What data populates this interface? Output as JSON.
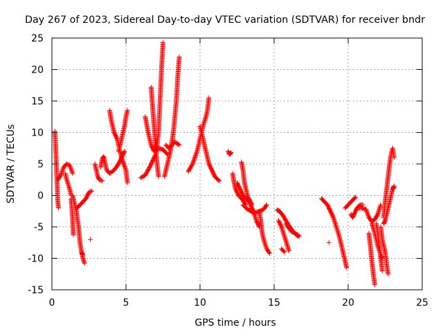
{
  "chart_data": {
    "type": "scatter",
    "title": "Day 267 of 2023, Sidereal Day-to-day VTEC variation (SDTVAR) for receiver bndr",
    "xlabel": "GPS time / hours",
    "ylabel": "SDTVAR / TECUs",
    "xlim": [
      0,
      25
    ],
    "ylim": [
      -15,
      25
    ],
    "xticks": [
      0,
      5,
      10,
      15,
      20,
      25
    ],
    "yticks": [
      -15,
      -10,
      -5,
      0,
      5,
      10,
      15,
      20,
      25
    ],
    "grid": true,
    "marker": "+",
    "series": [
      {
        "name": "SDTVAR",
        "color": "#ff0000",
        "segments": [
          [
            [
              0.2,
              10.2
            ],
            [
              0.25,
              8
            ],
            [
              0.3,
              5
            ],
            [
              0.35,
              2
            ],
            [
              0.4,
              -1
            ],
            [
              0.45,
              -2
            ]
          ],
          [
            [
              0.4,
              2.5
            ],
            [
              0.6,
              3.2
            ],
            [
              0.8,
              4.5
            ],
            [
              1.0,
              5
            ],
            [
              1.2,
              4.8
            ],
            [
              1.4,
              3.5
            ]
          ],
          [
            [
              0.9,
              3.5
            ],
            [
              1.0,
              2.5
            ],
            [
              1.2,
              1
            ],
            [
              1.3,
              0
            ]
          ],
          [
            [
              1.3,
              -0.5
            ],
            [
              1.35,
              -2
            ],
            [
              1.4,
              -4
            ],
            [
              1.45,
              -6.3
            ]
          ],
          [
            [
              1.4,
              0
            ],
            [
              1.5,
              -1
            ],
            [
              1.65,
              -2.5
            ],
            [
              1.8,
              -5
            ],
            [
              1.9,
              -7.5
            ],
            [
              2.0,
              -9
            ],
            [
              2.1,
              -9.5
            ]
          ],
          [
            [
              2.0,
              -9
            ],
            [
              2.1,
              -10
            ],
            [
              2.2,
              -10.8
            ]
          ],
          [
            [
              1.7,
              -2
            ],
            [
              1.9,
              -1.5
            ],
            [
              2.1,
              -1
            ],
            [
              2.3,
              -0.5
            ],
            [
              2.5,
              0.5
            ],
            [
              2.7,
              0.7
            ]
          ],
          [
            [
              2.6,
              -7
            ]
          ],
          [
            [
              2.9,
              5
            ],
            [
              3.0,
              4
            ],
            [
              3.1,
              3
            ],
            [
              3.2,
              2.5
            ],
            [
              3.4,
              2.3
            ]
          ],
          [
            [
              3.3,
              4.5
            ],
            [
              3.4,
              5.8
            ],
            [
              3.5,
              6.2
            ],
            [
              3.6,
              5
            ],
            [
              3.7,
              4
            ]
          ],
          [
            [
              3.7,
              4
            ],
            [
              3.9,
              3.5
            ],
            [
              4.2,
              4
            ],
            [
              4.5,
              5
            ],
            [
              4.8,
              6.5
            ],
            [
              4.9,
              7
            ]
          ],
          [
            [
              3.9,
              13.5
            ],
            [
              4.0,
              12
            ],
            [
              4.2,
              10
            ],
            [
              4.4,
              9
            ],
            [
              4.7,
              6
            ],
            [
              5.0,
              4
            ],
            [
              5.1,
              2
            ]
          ],
          [
            [
              4.5,
              7
            ],
            [
              4.7,
              9
            ],
            [
              4.9,
              11
            ],
            [
              5.0,
              12.5
            ],
            [
              5.1,
              13.5
            ]
          ],
          [
            [
              6.0,
              2.8
            ],
            [
              6.3,
              3.2
            ],
            [
              6.6,
              4.5
            ],
            [
              6.8,
              5.5
            ],
            [
              7.0,
              6.5
            ]
          ],
          [
            [
              6.3,
              12.5
            ],
            [
              6.5,
              10
            ],
            [
              6.7,
              8
            ],
            [
              6.9,
              7
            ],
            [
              7.2,
              7.5
            ],
            [
              7.5,
              7.3
            ],
            [
              7.8,
              6.5
            ]
          ],
          [
            [
              6.7,
              17.2
            ],
            [
              6.8,
              14
            ],
            [
              6.9,
              11
            ],
            [
              7.0,
              8
            ],
            [
              7.1,
              5
            ],
            [
              7.2,
              3
            ]
          ],
          [
            [
              7.0,
              6
            ],
            [
              7.2,
              10
            ],
            [
              7.3,
              15
            ],
            [
              7.4,
              20
            ],
            [
              7.5,
              24.3
            ]
          ],
          [
            [
              7.6,
              3
            ],
            [
              7.8,
              5
            ],
            [
              8.0,
              7
            ],
            [
              8.2,
              10
            ],
            [
              8.4,
              15
            ],
            [
              8.5,
              19
            ],
            [
              8.6,
              22
            ]
          ],
          [
            [
              7.7,
              8
            ],
            [
              7.9,
              7.5
            ],
            [
              8.1,
              8
            ],
            [
              8.3,
              8.5
            ],
            [
              8.6,
              8
            ]
          ],
          [
            [
              9.2,
              3.8
            ],
            [
              9.5,
              5
            ],
            [
              9.8,
              7
            ],
            [
              10.0,
              9
            ],
            [
              10.2,
              11
            ],
            [
              10.4,
              12.5
            ],
            [
              10.5,
              13.5
            ],
            [
              10.6,
              15.5
            ]
          ],
          [
            [
              10.0,
              11
            ],
            [
              10.2,
              9
            ],
            [
              10.4,
              7
            ],
            [
              10.6,
              5
            ],
            [
              10.8,
              4
            ],
            [
              11.0,
              3
            ],
            [
              11.3,
              2.3
            ]
          ],
          [
            [
              11.9,
              7
            ],
            [
              12.0,
              6.5
            ],
            [
              12.1,
              6.8
            ]
          ],
          [
            [
              12.2,
              3.5
            ],
            [
              12.3,
              2
            ],
            [
              12.4,
              1
            ],
            [
              12.6,
              0
            ],
            [
              12.8,
              -0.5
            ],
            [
              13.1,
              -1.5
            ]
          ],
          [
            [
              12.5,
              2
            ],
            [
              12.7,
              1
            ],
            [
              12.9,
              0
            ],
            [
              13.1,
              -0.5
            ],
            [
              13.3,
              -1
            ]
          ],
          [
            [
              12.8,
              5.3
            ],
            [
              12.9,
              4
            ],
            [
              13.0,
              2
            ],
            [
              13.2,
              0
            ],
            [
              13.4,
              -1.5
            ],
            [
              13.6,
              -2.5
            ],
            [
              13.8,
              -4
            ],
            [
              14.0,
              -5
            ]
          ],
          [
            [
              12.9,
              -1.5
            ],
            [
              13.1,
              -2
            ],
            [
              13.4,
              -2.5
            ],
            [
              13.7,
              -2.8
            ],
            [
              14.0,
              -2.5
            ],
            [
              14.3,
              -2.2
            ],
            [
              14.5,
              -1.5
            ]
          ],
          [
            [
              13.3,
              -0.5
            ],
            [
              13.5,
              -1.5
            ]
          ],
          [
            [
              14.0,
              -2.5
            ],
            [
              14.1,
              -4
            ],
            [
              14.2,
              -6
            ],
            [
              14.3,
              -7
            ],
            [
              14.5,
              -8.5
            ],
            [
              14.7,
              -9.2
            ]
          ],
          [
            [
              15.2,
              -2.3
            ],
            [
              15.4,
              -2.6
            ],
            [
              15.6,
              -3.2
            ],
            [
              15.8,
              -4
            ],
            [
              16.0,
              -4.8
            ],
            [
              16.3,
              -5.8
            ],
            [
              16.6,
              -6.5
            ]
          ],
          [
            [
              15.3,
              -4
            ],
            [
              15.5,
              -5
            ],
            [
              15.7,
              -6.5
            ],
            [
              15.9,
              -8
            ],
            [
              16.0,
              -8.8
            ]
          ],
          [
            [
              15.5,
              -8.5
            ],
            [
              15.7,
              -9
            ]
          ],
          [
            [
              15.8,
              -4.5
            ],
            [
              16.0,
              -5.2
            ],
            [
              16.2,
              -5.8
            ],
            [
              16.4,
              -6
            ],
            [
              16.6,
              -6.3
            ],
            [
              16.7,
              -6.5
            ]
          ],
          [
            [
              18.2,
              -0.5
            ],
            [
              18.4,
              -1
            ],
            [
              18.6,
              -1.5
            ],
            [
              18.8,
              -2.5
            ],
            [
              19.0,
              -3.5
            ],
            [
              19.2,
              -5
            ],
            [
              19.4,
              -6.5
            ],
            [
              19.6,
              -8.5
            ],
            [
              19.8,
              -10.5
            ],
            [
              19.9,
              -11.5
            ]
          ],
          [
            [
              18.7,
              -7.5
            ]
          ],
          [
            [
              19.8,
              -2
            ],
            [
              20.0,
              -1.5
            ],
            [
              20.2,
              -1
            ],
            [
              20.4,
              -0.5
            ],
            [
              20.5,
              -0.3
            ]
          ],
          [
            [
              20.2,
              -3
            ],
            [
              20.3,
              -3.5
            ],
            [
              20.4,
              -3
            ],
            [
              20.6,
              -2
            ],
            [
              20.8,
              -1.5
            ],
            [
              21.0,
              -1.5
            ]
          ],
          [
            [
              20.7,
              -2
            ],
            [
              20.9,
              -2
            ],
            [
              21.2,
              -2.2
            ],
            [
              21.4,
              -3.5
            ],
            [
              21.6,
              -4.2
            ],
            [
              21.8,
              -3.8
            ],
            [
              22.0,
              -3
            ],
            [
              22.2,
              -1.5
            ]
          ],
          [
            [
              21.4,
              -6
            ],
            [
              21.5,
              -8
            ],
            [
              21.6,
              -10.5
            ],
            [
              21.7,
              -12.5
            ],
            [
              21.8,
              -14.2
            ]
          ],
          [
            [
              21.6,
              -4.5
            ],
            [
              21.8,
              -6
            ],
            [
              22.0,
              -8
            ],
            [
              22.2,
              -9.5
            ],
            [
              22.3,
              -10
            ]
          ],
          [
            [
              21.9,
              -4.5
            ],
            [
              22.0,
              -6
            ],
            [
              22.1,
              -8
            ],
            [
              22.2,
              -10
            ],
            [
              22.3,
              -12
            ]
          ],
          [
            [
              22.2,
              -5
            ],
            [
              22.3,
              -7
            ],
            [
              22.5,
              -9
            ],
            [
              22.6,
              -11
            ],
            [
              22.7,
              -12.5
            ]
          ],
          [
            [
              22.4,
              -4.5
            ],
            [
              22.5,
              -4
            ],
            [
              22.6,
              -3
            ],
            [
              22.8,
              -1
            ],
            [
              22.9,
              0
            ],
            [
              23.0,
              1
            ],
            [
              23.1,
              1.5
            ]
          ],
          [
            [
              22.4,
              -3.5
            ],
            [
              22.5,
              -1
            ],
            [
              22.6,
              1
            ],
            [
              22.7,
              3
            ],
            [
              22.8,
              5
            ],
            [
              22.9,
              6.5
            ],
            [
              23.0,
              7.5
            ],
            [
              23.1,
              6
            ]
          ],
          [
            [
              23.0,
              1
            ],
            [
              23.1,
              1.3
            ]
          ]
        ]
      }
    ]
  }
}
